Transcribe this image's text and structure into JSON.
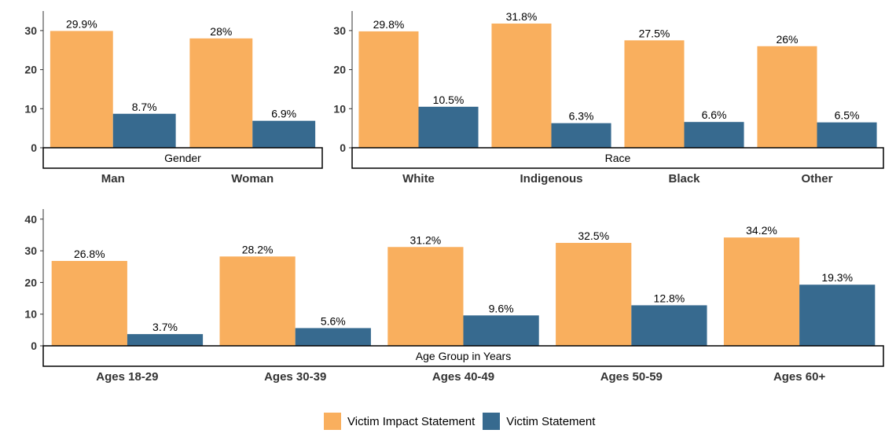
{
  "colors": {
    "vis": "#F9AF5E",
    "vs": "#376A8F"
  },
  "legend": {
    "vis": "Victim Impact Statement",
    "vs": "Victim Statement"
  },
  "chart_data": [
    {
      "type": "bar",
      "facet_label": "Gender",
      "categories": [
        "Man",
        "Woman"
      ],
      "series": [
        {
          "name": "Victim Impact Statement",
          "values": [
            29.9,
            28.0
          ],
          "labels": [
            "29.9%",
            "28%"
          ]
        },
        {
          "name": "Victim Statement",
          "values": [
            8.7,
            6.9
          ],
          "labels": [
            "8.7%",
            "6.9%"
          ]
        }
      ],
      "ylim": [
        0,
        34
      ],
      "yticks": [
        0,
        10,
        20,
        30
      ]
    },
    {
      "type": "bar",
      "facet_label": "Race",
      "categories": [
        "White",
        "Indigenous",
        "Black",
        "Other"
      ],
      "series": [
        {
          "name": "Victim Impact Statement",
          "values": [
            29.8,
            31.8,
            27.5,
            26.0
          ],
          "labels": [
            "29.8%",
            "31.8%",
            "27.5%",
            "26%"
          ]
        },
        {
          "name": "Victim Statement",
          "values": [
            10.5,
            6.3,
            6.6,
            6.5
          ],
          "labels": [
            "10.5%",
            "6.3%",
            "6.6%",
            "6.5%"
          ]
        }
      ],
      "ylim": [
        0,
        34
      ],
      "yticks": [
        0,
        10,
        20,
        30
      ]
    },
    {
      "type": "bar",
      "facet_label": "Age Group in Years",
      "categories": [
        "Ages 18-29",
        "Ages 30-39",
        "Ages 40-49",
        "Ages 50-59",
        "Ages 60+"
      ],
      "series": [
        {
          "name": "Victim Impact Statement",
          "values": [
            26.8,
            28.2,
            31.2,
            32.5,
            34.2
          ],
          "labels": [
            "26.8%",
            "28.2%",
            "31.2%",
            "32.5%",
            "34.2%"
          ]
        },
        {
          "name": "Victim Statement",
          "values": [
            3.7,
            5.6,
            9.6,
            12.8,
            19.3
          ],
          "labels": [
            "3.7%",
            "5.6%",
            "9.6%",
            "12.8%",
            "19.3%"
          ]
        }
      ],
      "ylim": [
        0,
        42
      ],
      "yticks": [
        0,
        10,
        20,
        30,
        40
      ]
    }
  ]
}
